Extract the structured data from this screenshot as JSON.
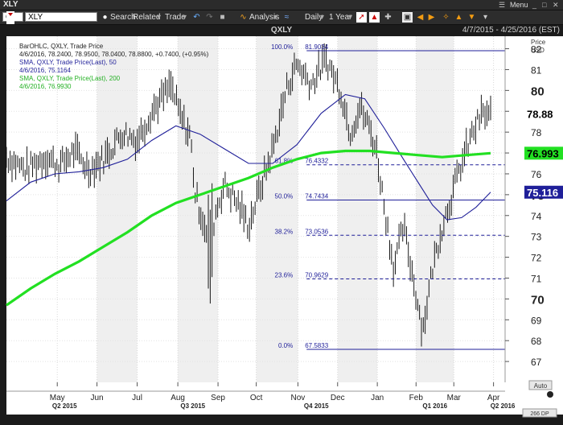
{
  "window": {
    "title": "XLY",
    "menu_label": "Menu",
    "close_glyph": "✕",
    "restore_glyph": "□",
    "minimize_glyph": "_"
  },
  "toolbar": {
    "symbol_prefix": "Q",
    "symbol_value": "XLY",
    "search_label": "Search",
    "related_label": "Related",
    "trade_label": "Trade",
    "analysis_label": "Analysis",
    "daily_label": "Daily",
    "period_label": "1 Year"
  },
  "header": {
    "ticker": "QXLY",
    "date_range": "4/7/2015 - 4/25/2016 (EST)"
  },
  "legend": {
    "line1": "BarOHLC, QXLY, Trade Price",
    "line2": "4/6/2016, 78.2400, 78.9500, 78.0400, 78.8800, +0.7400, (+0.95%)",
    "line3": "SMA, QXLY, Trade Price(Last), 50",
    "line4": "4/6/2016, 75.1164",
    "line5": "SMA, QXLY, Trade Price(Last), 200",
    "line6": "4/6/2016, 76.9930"
  },
  "axis_panel": {
    "price_label": "Price",
    "currency_label": "USD",
    "auto_label": "Auto",
    "dp_label": "266 DP"
  },
  "colors": {
    "background": "#1b1b1b",
    "plot": "#ffffff",
    "shade": "#efefef",
    "bars": "#000000",
    "sma50": "#1f1f99",
    "sma200": "#22e022",
    "fib": "#1f1f99",
    "grid": "#c8c8c8"
  },
  "chart_data": {
    "type": "ohlc",
    "symbol": "QXLY",
    "ylim": [
      66.0,
      82.6
    ],
    "y_ticks": [
      67,
      68,
      69,
      70,
      71,
      72,
      73,
      74,
      75,
      76,
      77,
      78,
      79,
      80,
      81,
      82
    ],
    "y_ticks_major": [
      70,
      75,
      80
    ],
    "x_months": [
      {
        "label": "May",
        "t": 0.105
      },
      {
        "label": "Jun",
        "t": 0.187
      },
      {
        "label": "Jul",
        "t": 0.27
      },
      {
        "label": "Aug",
        "t": 0.354
      },
      {
        "label": "Sep",
        "t": 0.437
      },
      {
        "label": "Oct",
        "t": 0.516
      },
      {
        "label": "Nov",
        "t": 0.602
      },
      {
        "label": "Dec",
        "t": 0.684
      },
      {
        "label": "Jan",
        "t": 0.766
      },
      {
        "label": "Feb",
        "t": 0.846
      },
      {
        "label": "Mar",
        "t": 0.924
      },
      {
        "label": "Apr",
        "t": 1.006
      }
    ],
    "quarters": [
      {
        "label": "Q2 2015",
        "t": 0.12
      },
      {
        "label": "Q3 2015",
        "t": 0.385
      },
      {
        "label": "Q4 2015",
        "t": 0.64
      },
      {
        "label": "Q1 2016",
        "t": 0.885
      },
      {
        "label": "Q2 2016",
        "t": 1.025
      }
    ],
    "shaded_months": [
      [
        0.187,
        0.27
      ],
      [
        0.354,
        0.437
      ],
      [
        0.516,
        0.602
      ],
      [
        0.684,
        0.766
      ],
      [
        0.846,
        0.924
      ]
    ],
    "price_path": [
      [
        0.0,
        76.8
      ],
      [
        0.04,
        76.2
      ],
      [
        0.08,
        76.8
      ],
      [
        0.11,
        76.4
      ],
      [
        0.14,
        77.1
      ],
      [
        0.17,
        76.2
      ],
      [
        0.2,
        76.7
      ],
      [
        0.24,
        78.0
      ],
      [
        0.27,
        77.6
      ],
      [
        0.3,
        79.0
      ],
      [
        0.34,
        80.2
      ],
      [
        0.36,
        78.7
      ],
      [
        0.38,
        77.8
      ],
      [
        0.39,
        75.0
      ],
      [
        0.41,
        73.5
      ],
      [
        0.42,
        72.0
      ],
      [
        0.43,
        74.0
      ],
      [
        0.45,
        75.5
      ],
      [
        0.48,
        74.5
      ],
      [
        0.5,
        73.5
      ],
      [
        0.52,
        75.0
      ],
      [
        0.55,
        77.2
      ],
      [
        0.58,
        80.2
      ],
      [
        0.6,
        81.3
      ],
      [
        0.63,
        80.3
      ],
      [
        0.66,
        81.5
      ],
      [
        0.69,
        80.0
      ],
      [
        0.71,
        78.0
      ],
      [
        0.73,
        79.2
      ],
      [
        0.75,
        78.2
      ],
      [
        0.765,
        77.0
      ],
      [
        0.78,
        74.5
      ],
      [
        0.8,
        71.5
      ],
      [
        0.82,
        73.5
      ],
      [
        0.84,
        71.0
      ],
      [
        0.86,
        68.5
      ],
      [
        0.88,
        71.5
      ],
      [
        0.9,
        73.5
      ],
      [
        0.92,
        75.0
      ],
      [
        0.94,
        76.5
      ],
      [
        0.96,
        77.8
      ],
      [
        0.98,
        78.8
      ],
      [
        1.0,
        78.88
      ]
    ],
    "sma50": [
      [
        0.0,
        74.7
      ],
      [
        0.05,
        75.6
      ],
      [
        0.1,
        76.0
      ],
      [
        0.15,
        76.1
      ],
      [
        0.2,
        76.3
      ],
      [
        0.25,
        76.7
      ],
      [
        0.3,
        77.6
      ],
      [
        0.35,
        78.3
      ],
      [
        0.4,
        77.9
      ],
      [
        0.45,
        77.2
      ],
      [
        0.5,
        76.5
      ],
      [
        0.55,
        76.5
      ],
      [
        0.6,
        77.4
      ],
      [
        0.65,
        78.9
      ],
      [
        0.7,
        79.8
      ],
      [
        0.74,
        79.6
      ],
      [
        0.78,
        78.2
      ],
      [
        0.82,
        76.7
      ],
      [
        0.85,
        75.6
      ],
      [
        0.88,
        74.5
      ],
      [
        0.91,
        73.8
      ],
      [
        0.94,
        73.9
      ],
      [
        0.97,
        74.4
      ],
      [
        1.0,
        75.12
      ]
    ],
    "sma200": [
      [
        0.0,
        69.7
      ],
      [
        0.05,
        70.5
      ],
      [
        0.1,
        71.2
      ],
      [
        0.15,
        71.8
      ],
      [
        0.2,
        72.5
      ],
      [
        0.25,
        73.2
      ],
      [
        0.3,
        74.0
      ],
      [
        0.35,
        74.6
      ],
      [
        0.4,
        75.0
      ],
      [
        0.45,
        75.4
      ],
      [
        0.5,
        75.8
      ],
      [
        0.55,
        76.3
      ],
      [
        0.6,
        76.7
      ],
      [
        0.65,
        77.0
      ],
      [
        0.7,
        77.1
      ],
      [
        0.75,
        77.1
      ],
      [
        0.8,
        77.0
      ],
      [
        0.85,
        76.9
      ],
      [
        0.9,
        76.8
      ],
      [
        0.95,
        76.9
      ],
      [
        1.0,
        76.99
      ]
    ],
    "fib_start_t": 0.62,
    "fib_levels": [
      {
        "pct": "100.0%",
        "value": 81.9034,
        "label": "81.9034",
        "style": "solid"
      },
      {
        "pct": "61.8%",
        "value": 76.4332,
        "label": "76.4332",
        "style": "dash"
      },
      {
        "pct": "50.0%",
        "value": 74.7434,
        "label": "74.7434",
        "style": "solid"
      },
      {
        "pct": "38.2%",
        "value": 73.0536,
        "label": "73.0536",
        "style": "dash"
      },
      {
        "pct": "23.6%",
        "value": 70.9629,
        "label": "70.9629",
        "style": "dash"
      },
      {
        "pct": "0.0%",
        "value": 67.5833,
        "label": "67.5833",
        "style": "solid"
      }
    ],
    "last_price": {
      "value": 78.88,
      "label": "78.88"
    },
    "sma200_last": {
      "value": 76.99,
      "label": "76.993"
    },
    "sma50_last": {
      "value": 75.12,
      "label": "75.116"
    }
  }
}
